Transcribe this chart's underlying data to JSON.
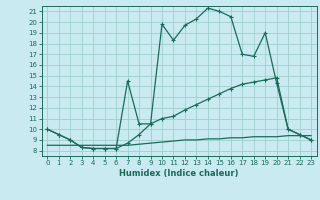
{
  "xlabel": "Humidex (Indice chaleur)",
  "xlim": [
    -0.5,
    23.5
  ],
  "ylim": [
    7.5,
    21.5
  ],
  "xticks": [
    0,
    1,
    2,
    3,
    4,
    5,
    6,
    7,
    8,
    9,
    10,
    11,
    12,
    13,
    14,
    15,
    16,
    17,
    18,
    19,
    20,
    21,
    22,
    23
  ],
  "yticks": [
    8,
    9,
    10,
    11,
    12,
    13,
    14,
    15,
    16,
    17,
    18,
    19,
    20,
    21
  ],
  "bg_color": "#c8eaf0",
  "grid_color": "#9ecfcc",
  "line_color": "#1a6b5a",
  "curve_peak_x": [
    0,
    1,
    2,
    3,
    4,
    5,
    6,
    7,
    8,
    9,
    10,
    11,
    12,
    13,
    14,
    15,
    16,
    17,
    18,
    19,
    20,
    21,
    22,
    23
  ],
  "curve_peak_y": [
    10,
    9.5,
    9.0,
    8.3,
    8.2,
    8.2,
    8.2,
    14.5,
    10.5,
    10.5,
    19.8,
    18.3,
    19.7,
    20.3,
    21.3,
    21.0,
    20.5,
    17.0,
    16.8,
    19.0,
    14.3,
    10.0,
    9.5,
    9.0
  ],
  "curve_smooth_x": [
    0,
    1,
    2,
    3,
    4,
    5,
    6,
    7,
    8,
    9,
    10,
    11,
    12,
    13,
    14,
    15,
    16,
    17,
    18,
    19,
    20,
    21,
    22,
    23
  ],
  "curve_smooth_y": [
    10,
    9.5,
    9.0,
    8.3,
    8.2,
    8.2,
    8.2,
    8.7,
    9.5,
    10.5,
    11.0,
    11.2,
    11.8,
    12.3,
    12.8,
    13.3,
    13.8,
    14.2,
    14.4,
    14.6,
    14.8,
    10.0,
    9.5,
    9.0
  ],
  "curve_flat_x": [
    0,
    1,
    2,
    3,
    4,
    5,
    6,
    7,
    8,
    9,
    10,
    11,
    12,
    13,
    14,
    15,
    16,
    17,
    18,
    19,
    20,
    21,
    22,
    23
  ],
  "curve_flat_y": [
    8.5,
    8.5,
    8.5,
    8.5,
    8.5,
    8.5,
    8.5,
    8.5,
    8.6,
    8.7,
    8.8,
    8.9,
    9.0,
    9.0,
    9.1,
    9.1,
    9.2,
    9.2,
    9.3,
    9.3,
    9.3,
    9.4,
    9.4,
    9.4
  ]
}
